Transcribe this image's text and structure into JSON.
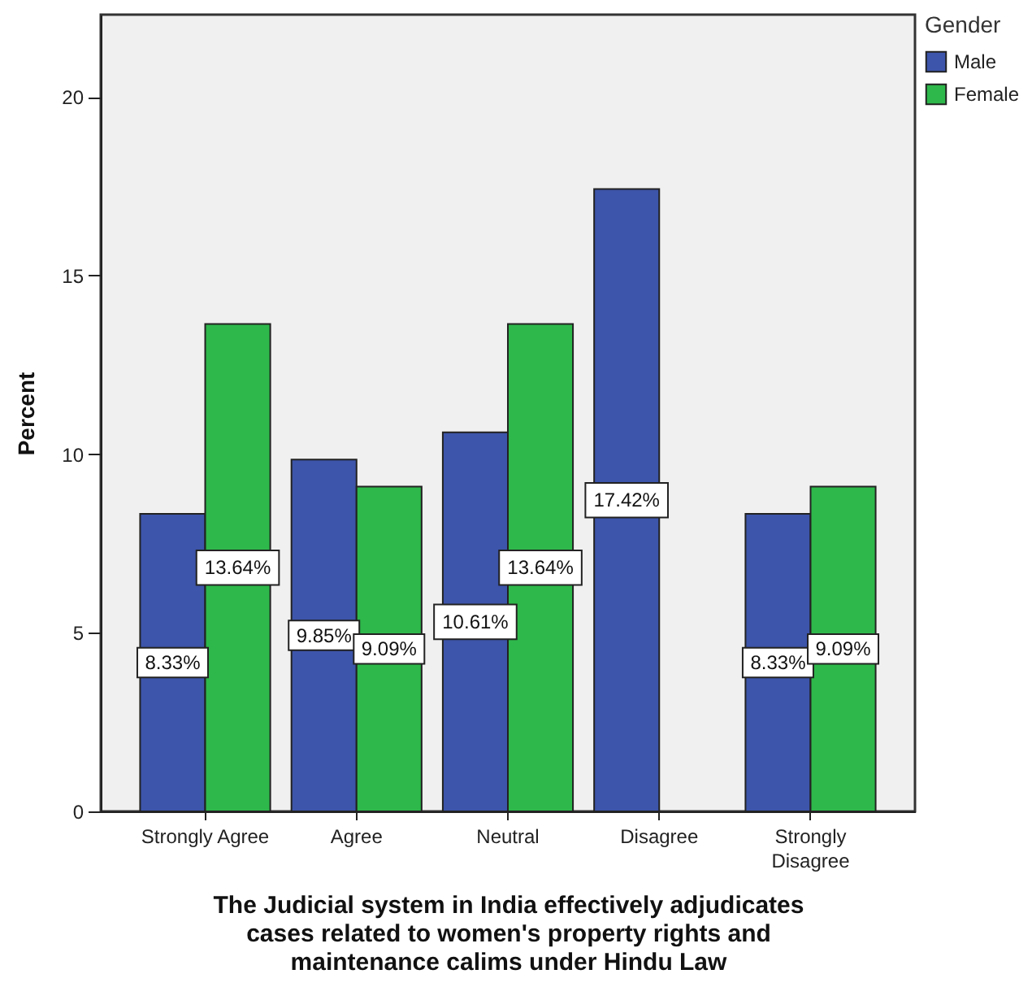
{
  "chart_data": {
    "type": "bar",
    "categories": [
      "Strongly Agree",
      "Agree",
      "Neutral",
      "Disagree",
      "Strongly Disagree"
    ],
    "series": [
      {
        "name": "Male",
        "color": "#3d55aa",
        "values": [
          8.33,
          9.85,
          10.61,
          17.42,
          8.33
        ],
        "value_labels": [
          "8.33%",
          "9.85%",
          "10.61%",
          "17.42%",
          "8.33%"
        ]
      },
      {
        "name": "Female",
        "color": "#2eb84b",
        "values": [
          13.64,
          9.09,
          13.64,
          null,
          9.09
        ],
        "value_labels": [
          "13.64%",
          "9.09%",
          "13.64%",
          null,
          "9.09%"
        ]
      }
    ],
    "xlabel": "The Judicial system in India effectively adjudicates\ncases related to women's property rights and\nmaintenance calims under Hindu Law",
    "ylabel": "Percent",
    "legend_title": "Gender",
    "legend": "top right",
    "ylim": [
      0,
      22.3
    ],
    "yticks": [
      0,
      5,
      10,
      15,
      20
    ],
    "grid": false
  }
}
